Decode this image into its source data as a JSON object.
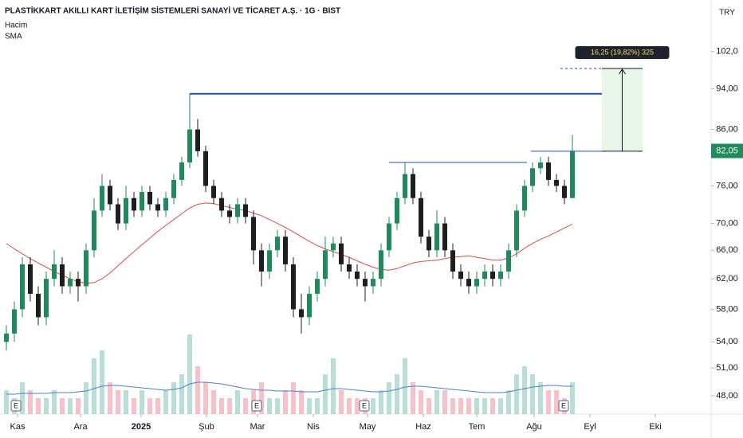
{
  "chart_data": {
    "type": "candlestick",
    "title": "PLASTİKKART AKILLI KART İLETİŞİM SİSTEMLERİ SANAYİ VE TİCARET A.Ş. · 1G · BIST",
    "indicators": [
      "Hacim",
      "SMA"
    ],
    "currency": "TRY",
    "log_scale": true,
    "up_color": "#1f8a5b",
    "down_color": "#1e1e1e",
    "sma_color": "#e04848",
    "volume_up_color": "#b9ded6",
    "volume_down_color": "#f6c1c8",
    "volume_sma_color": "#4a7fd6",
    "level_color": "#1f4fd1",
    "x": [
      0,
      1,
      2,
      3,
      4,
      5,
      6,
      7,
      8,
      9,
      10,
      11,
      12,
      13,
      14,
      15,
      16,
      17,
      18,
      19,
      20,
      21,
      22,
      23,
      24,
      25,
      26,
      27,
      28,
      29,
      30,
      31,
      32,
      33,
      34,
      35,
      36,
      37,
      38,
      39,
      40,
      41,
      42,
      43,
      44,
      45,
      46,
      47,
      48,
      49,
      50,
      51,
      52,
      53,
      54,
      55,
      56,
      57,
      58,
      59,
      60,
      61,
      62,
      63,
      64,
      65,
      66,
      67,
      68,
      69,
      70,
      71
    ],
    "xlim": [
      -0.8,
      88.4
    ],
    "xticks": [
      {
        "value": 1.4,
        "label": "Kas"
      },
      {
        "value": 9.3,
        "label": "Ara"
      },
      {
        "value": 16.9,
        "label": "2025"
      },
      {
        "value": 25.1,
        "label": "Şub"
      },
      {
        "value": 31.5,
        "label": "Mar"
      },
      {
        "value": 38.5,
        "label": "Nis"
      },
      {
        "value": 45.3,
        "label": "May"
      },
      {
        "value": 52.3,
        "label": "Haz"
      },
      {
        "value": 59,
        "label": "Tem"
      },
      {
        "value": 66.2,
        "label": "Ağu"
      },
      {
        "value": 73.2,
        "label": "Eyl"
      },
      {
        "value": 81.4,
        "label": "Eki"
      }
    ],
    "ylim": [
      46.1,
      114.2
    ],
    "yticks": [
      {
        "value": 102,
        "label": "102,0"
      },
      {
        "value": 94,
        "label": "94,00"
      },
      {
        "value": 86,
        "label": "86,00"
      },
      {
        "value": 76,
        "label": "76,00"
      },
      {
        "value": 70,
        "label": "70,00"
      },
      {
        "value": 66,
        "label": "66,00"
      },
      {
        "value": 62,
        "label": "62,00"
      },
      {
        "value": 58,
        "label": "58,00"
      },
      {
        "value": 54,
        "label": "54,00"
      },
      {
        "value": 51,
        "label": "51,00"
      },
      {
        "value": 48,
        "label": "48,00"
      }
    ],
    "candles": [
      [
        54,
        56,
        53,
        55
      ],
      [
        55,
        59,
        54,
        58
      ],
      [
        58,
        65,
        57,
        64
      ],
      [
        64,
        65,
        59,
        60
      ],
      [
        60,
        61,
        56,
        57
      ],
      [
        57,
        63,
        56,
        62
      ],
      [
        62,
        66,
        61,
        64
      ],
      [
        64,
        65,
        60,
        61
      ],
      [
        61,
        63,
        60,
        62
      ],
      [
        62,
        63,
        59,
        61
      ],
      [
        61,
        67,
        60,
        66
      ],
      [
        66,
        74,
        65,
        72
      ],
      [
        72,
        78,
        71,
        76
      ],
      [
        76,
        77,
        72,
        73
      ],
      [
        73,
        74,
        69,
        70
      ],
      [
        70,
        76,
        69,
        74
      ],
      [
        74,
        75,
        71,
        72
      ],
      [
        72,
        76,
        71,
        75
      ],
      [
        75,
        76,
        72,
        73
      ],
      [
        73,
        74,
        71,
        72
      ],
      [
        72,
        75,
        71,
        74
      ],
      [
        74,
        78,
        73,
        77
      ],
      [
        77,
        81,
        76,
        80
      ],
      [
        80,
        93,
        79,
        86
      ],
      [
        86,
        88,
        81,
        82
      ],
      [
        82,
        83,
        75,
        76
      ],
      [
        76,
        77,
        73,
        74
      ],
      [
        74,
        75,
        71,
        72
      ],
      [
        72,
        73,
        70,
        71
      ],
      [
        71,
        74,
        70,
        73
      ],
      [
        73,
        74,
        70,
        71
      ],
      [
        71,
        72,
        64,
        66
      ],
      [
        66,
        67,
        61,
        63
      ],
      [
        63,
        67,
        62,
        66
      ],
      [
        66,
        69,
        65,
        68
      ],
      [
        68,
        69,
        63,
        64
      ],
      [
        64,
        65,
        57,
        58
      ],
      [
        58,
        60,
        55,
        57
      ],
      [
        57,
        61,
        56,
        60
      ],
      [
        60,
        63,
        59,
        62
      ],
      [
        62,
        68,
        61,
        66
      ],
      [
        66,
        68,
        65,
        67
      ],
      [
        67,
        68,
        63,
        64
      ],
      [
        64,
        65,
        62,
        63
      ],
      [
        63,
        64,
        61,
        62
      ],
      [
        62,
        63,
        59,
        61
      ],
      [
        61,
        63,
        60,
        62
      ],
      [
        62,
        67,
        61,
        66
      ],
      [
        66,
        71,
        65,
        70
      ],
      [
        70,
        75,
        69,
        74
      ],
      [
        74,
        80,
        73,
        78
      ],
      [
        78,
        79,
        73,
        74
      ],
      [
        74,
        75,
        67,
        68
      ],
      [
        68,
        69,
        65,
        66
      ],
      [
        66,
        72,
        65,
        70
      ],
      [
        70,
        71,
        65,
        66
      ],
      [
        66,
        67,
        62,
        63
      ],
      [
        63,
        64,
        61,
        62
      ],
      [
        62,
        63,
        60,
        61
      ],
      [
        61,
        63,
        60,
        62
      ],
      [
        62,
        64,
        61,
        63
      ],
      [
        63,
        64,
        61,
        62
      ],
      [
        62,
        64,
        61,
        63
      ],
      [
        63,
        67,
        62,
        66
      ],
      [
        66,
        73,
        65,
        72
      ],
      [
        72,
        77,
        71,
        76
      ],
      [
        76,
        80,
        75,
        79
      ],
      [
        79,
        81,
        78,
        80
      ],
      [
        80,
        81,
        76,
        77
      ],
      [
        77,
        78,
        75,
        76
      ],
      [
        76,
        77,
        73,
        74
      ],
      [
        74,
        85,
        74,
        82.05
      ]
    ],
    "sma": [
      67,
      66.2,
      65.5,
      64.8,
      64.2,
      63.6,
      63,
      62.5,
      62,
      61.6,
      61.4,
      61.5,
      62,
      62.8,
      63.8,
      64.8,
      65.8,
      66.8,
      67.8,
      68.8,
      69.7,
      70.6,
      71.5,
      72.4,
      73,
      73.2,
      73.1,
      72.8,
      72.5,
      72.2,
      72,
      71.6,
      71.2,
      70.6,
      70,
      69.4,
      68.7,
      68,
      67.3,
      66.7,
      66.2,
      65.8,
      65.4,
      65,
      64.5,
      64,
      63.6,
      63.3,
      63.2,
      63.4,
      63.8,
      64.2,
      64.4,
      64.5,
      64.6,
      64.8,
      65,
      65.1,
      65.2,
      65,
      64.8,
      64.6,
      64.6,
      64.9,
      65.5,
      66.3,
      67,
      67.6,
      68.1,
      68.7,
      69.3,
      69.9
    ],
    "volume": [
      3,
      2,
      4,
      3,
      2,
      2,
      3,
      2,
      2,
      2,
      4,
      7,
      8,
      4,
      3,
      3,
      2,
      3,
      2,
      2,
      3,
      4,
      5,
      10,
      6,
      4,
      3,
      2,
      2,
      3,
      2,
      3,
      4,
      2,
      2,
      3,
      4,
      3,
      2,
      2,
      5,
      7,
      3,
      2,
      2,
      2,
      2,
      3,
      4,
      5,
      7,
      4,
      3,
      2,
      3,
      3,
      2,
      2,
      2,
      2,
      2,
      2,
      2,
      3,
      5,
      6,
      5,
      4,
      3,
      3,
      2,
      4
    ],
    "volume_sma": [
      2.5,
      2.5,
      2.6,
      2.6,
      2.6,
      2.6,
      2.7,
      2.7,
      2.7,
      2.8,
      2.9,
      3.2,
      3.5,
      3.6,
      3.6,
      3.5,
      3.4,
      3.3,
      3.2,
      3.1,
      3,
      3.1,
      3.3,
      3.8,
      4,
      4,
      3.9,
      3.8,
      3.6,
      3.4,
      3.2,
      3.1,
      3,
      3,
      2.9,
      2.9,
      2.9,
      2.8,
      2.8,
      2.8,
      3,
      3.2,
      3.2,
      3.1,
      3,
      2.9,
      2.8,
      2.8,
      2.9,
      3.1,
      3.4,
      3.5,
      3.5,
      3.4,
      3.3,
      3.2,
      3.1,
      3,
      2.9,
      2.8,
      2.7,
      2.7,
      2.7,
      2.8,
      3,
      3.2,
      3.4,
      3.5,
      3.6,
      3.6,
      3.5,
      3.5
    ],
    "volume_lim": [
      0,
      12
    ],
    "levels": [
      {
        "price": 93,
        "from": 23,
        "to": 74.7
      },
      {
        "price": 80,
        "from": 48,
        "to": 65.3
      },
      {
        "price": 82,
        "from": 65.8,
        "to": 75.2
      }
    ],
    "measure": {
      "label": "16,25 (19,82%) 325",
      "from": 82,
      "to": 98.3,
      "x": [
        74.7,
        79.8
      ]
    },
    "events": [
      {
        "x": 1.2,
        "label": "E"
      },
      {
        "x": 31.4,
        "label": "E"
      },
      {
        "x": 44.9,
        "label": "E"
      },
      {
        "x": 69.9,
        "label": "E"
      }
    ],
    "last_price": {
      "value": 82.05,
      "label": "82,05"
    }
  }
}
